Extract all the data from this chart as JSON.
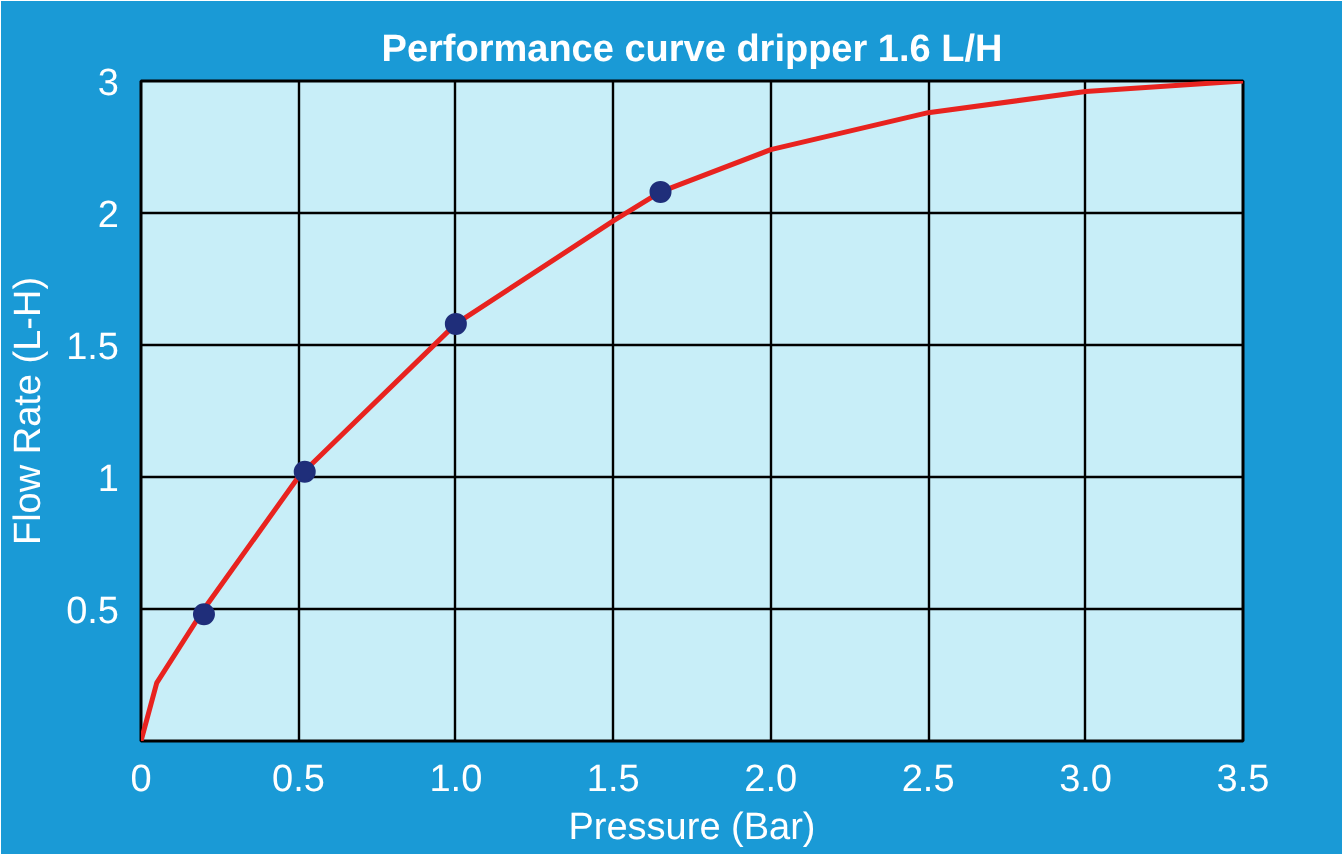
{
  "chart_data": {
    "type": "line",
    "title": "Performance curve dripper 1.6 L/H",
    "xlabel": "Pressure (Bar)",
    "ylabel": "Flow Rate (L-H)",
    "xlim": [
      0,
      3.5
    ],
    "ylim": [
      0,
      2.5
    ],
    "xticks": [
      0,
      {
        "value": 0.5,
        "label": "0.5"
      },
      {
        "value": 1,
        "label": "1.0"
      },
      {
        "value": 1.5,
        "label": "1.5"
      },
      {
        "value": 2,
        "label": "2.0"
      },
      {
        "value": 2.5,
        "label": "2.5"
      },
      {
        "value": 3,
        "label": "3.0"
      },
      {
        "value": 3.5,
        "label": "3.5"
      }
    ],
    "yticks": [
      0.5,
      1,
      1.5,
      2,
      {
        "value": 2.5,
        "label": "3"
      }
    ],
    "grid": true,
    "series": [
      {
        "color": "#e8231f",
        "marker": "none",
        "x": [
          0,
          0.05,
          0.2,
          0.5,
          1.0,
          1.5,
          1.65,
          2.0,
          2.5,
          3.0,
          3.5
        ],
        "values": [
          0,
          0.22,
          0.5,
          1.0,
          1.58,
          1.97,
          2.08,
          2.24,
          2.38,
          2.46,
          2.5
        ]
      },
      {
        "type": "scatter",
        "color": "#1f2e7a",
        "marker": "circle",
        "x": [
          0.2,
          0.52,
          1.0,
          1.65
        ],
        "values": [
          0.48,
          1.02,
          1.58,
          2.08
        ]
      }
    ]
  }
}
